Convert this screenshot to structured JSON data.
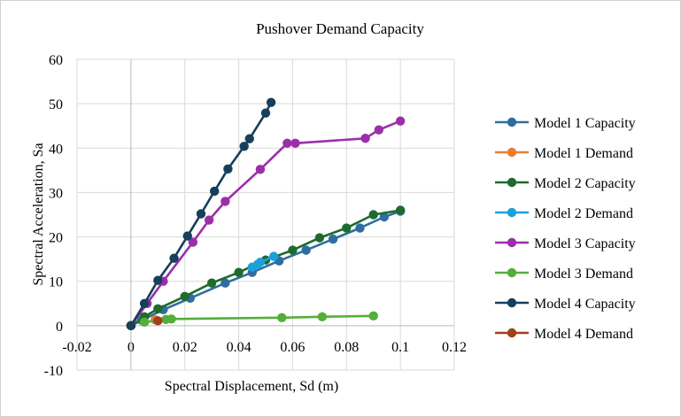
{
  "chart_data": {
    "type": "scatter",
    "title": "Pushover Demand Capacity",
    "xlabel": "Spectral Displacement, Sd (m)",
    "ylabel": "Spectral Acceleration, Sa",
    "xlim": [
      -0.02,
      0.12
    ],
    "ylim": [
      -10,
      60
    ],
    "xticks": [
      "-0.02",
      "0",
      "0.02",
      "0.04",
      "0.06",
      "0.08",
      "0.1",
      "0.12"
    ],
    "yticks": [
      "-10",
      "0",
      "10",
      "20",
      "30",
      "40",
      "50",
      "60"
    ],
    "grid": true,
    "legend_position": "right",
    "series": [
      {
        "name": "Model 1 Capacity",
        "color": "#2E6E9E",
        "points": [
          [
            0,
            0
          ],
          [
            0.004,
            1.2
          ],
          [
            0.012,
            3.6
          ],
          [
            0.022,
            6.2
          ],
          [
            0.035,
            9.6
          ],
          [
            0.045,
            12
          ],
          [
            0.055,
            14.6
          ],
          [
            0.065,
            17
          ],
          [
            0.075,
            19.5
          ],
          [
            0.085,
            22
          ],
          [
            0.094,
            24.5
          ],
          [
            0.1,
            25.8
          ]
        ]
      },
      {
        "name": "Model 1 Demand",
        "color": "#ED7D31",
        "points": [
          [
            0.009,
            1.3
          ]
        ]
      },
      {
        "name": "Model 2 Capacity",
        "color": "#1E6B2E",
        "points": [
          [
            0,
            0
          ],
          [
            0.005,
            2
          ],
          [
            0.01,
            3.8
          ],
          [
            0.02,
            6.6
          ],
          [
            0.03,
            9.6
          ],
          [
            0.04,
            12
          ],
          [
            0.05,
            14.8
          ],
          [
            0.06,
            17
          ],
          [
            0.07,
            19.8
          ],
          [
            0.08,
            22
          ],
          [
            0.09,
            25
          ],
          [
            0.1,
            26
          ]
        ]
      },
      {
        "name": "Model 2 Demand",
        "color": "#1CA0DA",
        "points": [
          [
            0.045,
            13.2
          ],
          [
            0.047,
            13.8
          ],
          [
            0.048,
            14.3
          ],
          [
            0.053,
            15.6
          ]
        ]
      },
      {
        "name": "Model 3 Capacity",
        "color": "#9B2FA8",
        "points": [
          [
            0,
            0
          ],
          [
            0.006,
            5
          ],
          [
            0.012,
            10
          ],
          [
            0.023,
            18.8
          ],
          [
            0.029,
            23.8
          ],
          [
            0.035,
            28
          ],
          [
            0.048,
            35.2
          ],
          [
            0.058,
            41.1
          ],
          [
            0.061,
            41.1
          ],
          [
            0.087,
            42.2
          ],
          [
            0.092,
            44.1
          ],
          [
            0.1,
            46.1
          ]
        ]
      },
      {
        "name": "Model 3 Demand",
        "color": "#54AE3A",
        "points": [
          [
            0.005,
            0.8
          ],
          [
            0.013,
            1.4
          ],
          [
            0.015,
            1.5
          ],
          [
            0.056,
            1.8
          ],
          [
            0.071,
            2
          ],
          [
            0.09,
            2.2
          ]
        ]
      },
      {
        "name": "Model 4 Capacity",
        "color": "#173F5A",
        "points": [
          [
            0,
            0
          ],
          [
            0.005,
            5
          ],
          [
            0.01,
            10.2
          ],
          [
            0.016,
            15.2
          ],
          [
            0.021,
            20.2
          ],
          [
            0.026,
            25.2
          ],
          [
            0.031,
            30.3
          ],
          [
            0.036,
            35.3
          ],
          [
            0.042,
            40.4
          ],
          [
            0.044,
            42.1
          ],
          [
            0.05,
            47.9
          ],
          [
            0.052,
            50.3
          ]
        ]
      },
      {
        "name": "Model 4 Demand",
        "color": "#A0411B",
        "points": [
          [
            0.01,
            1.1
          ]
        ]
      }
    ]
  }
}
